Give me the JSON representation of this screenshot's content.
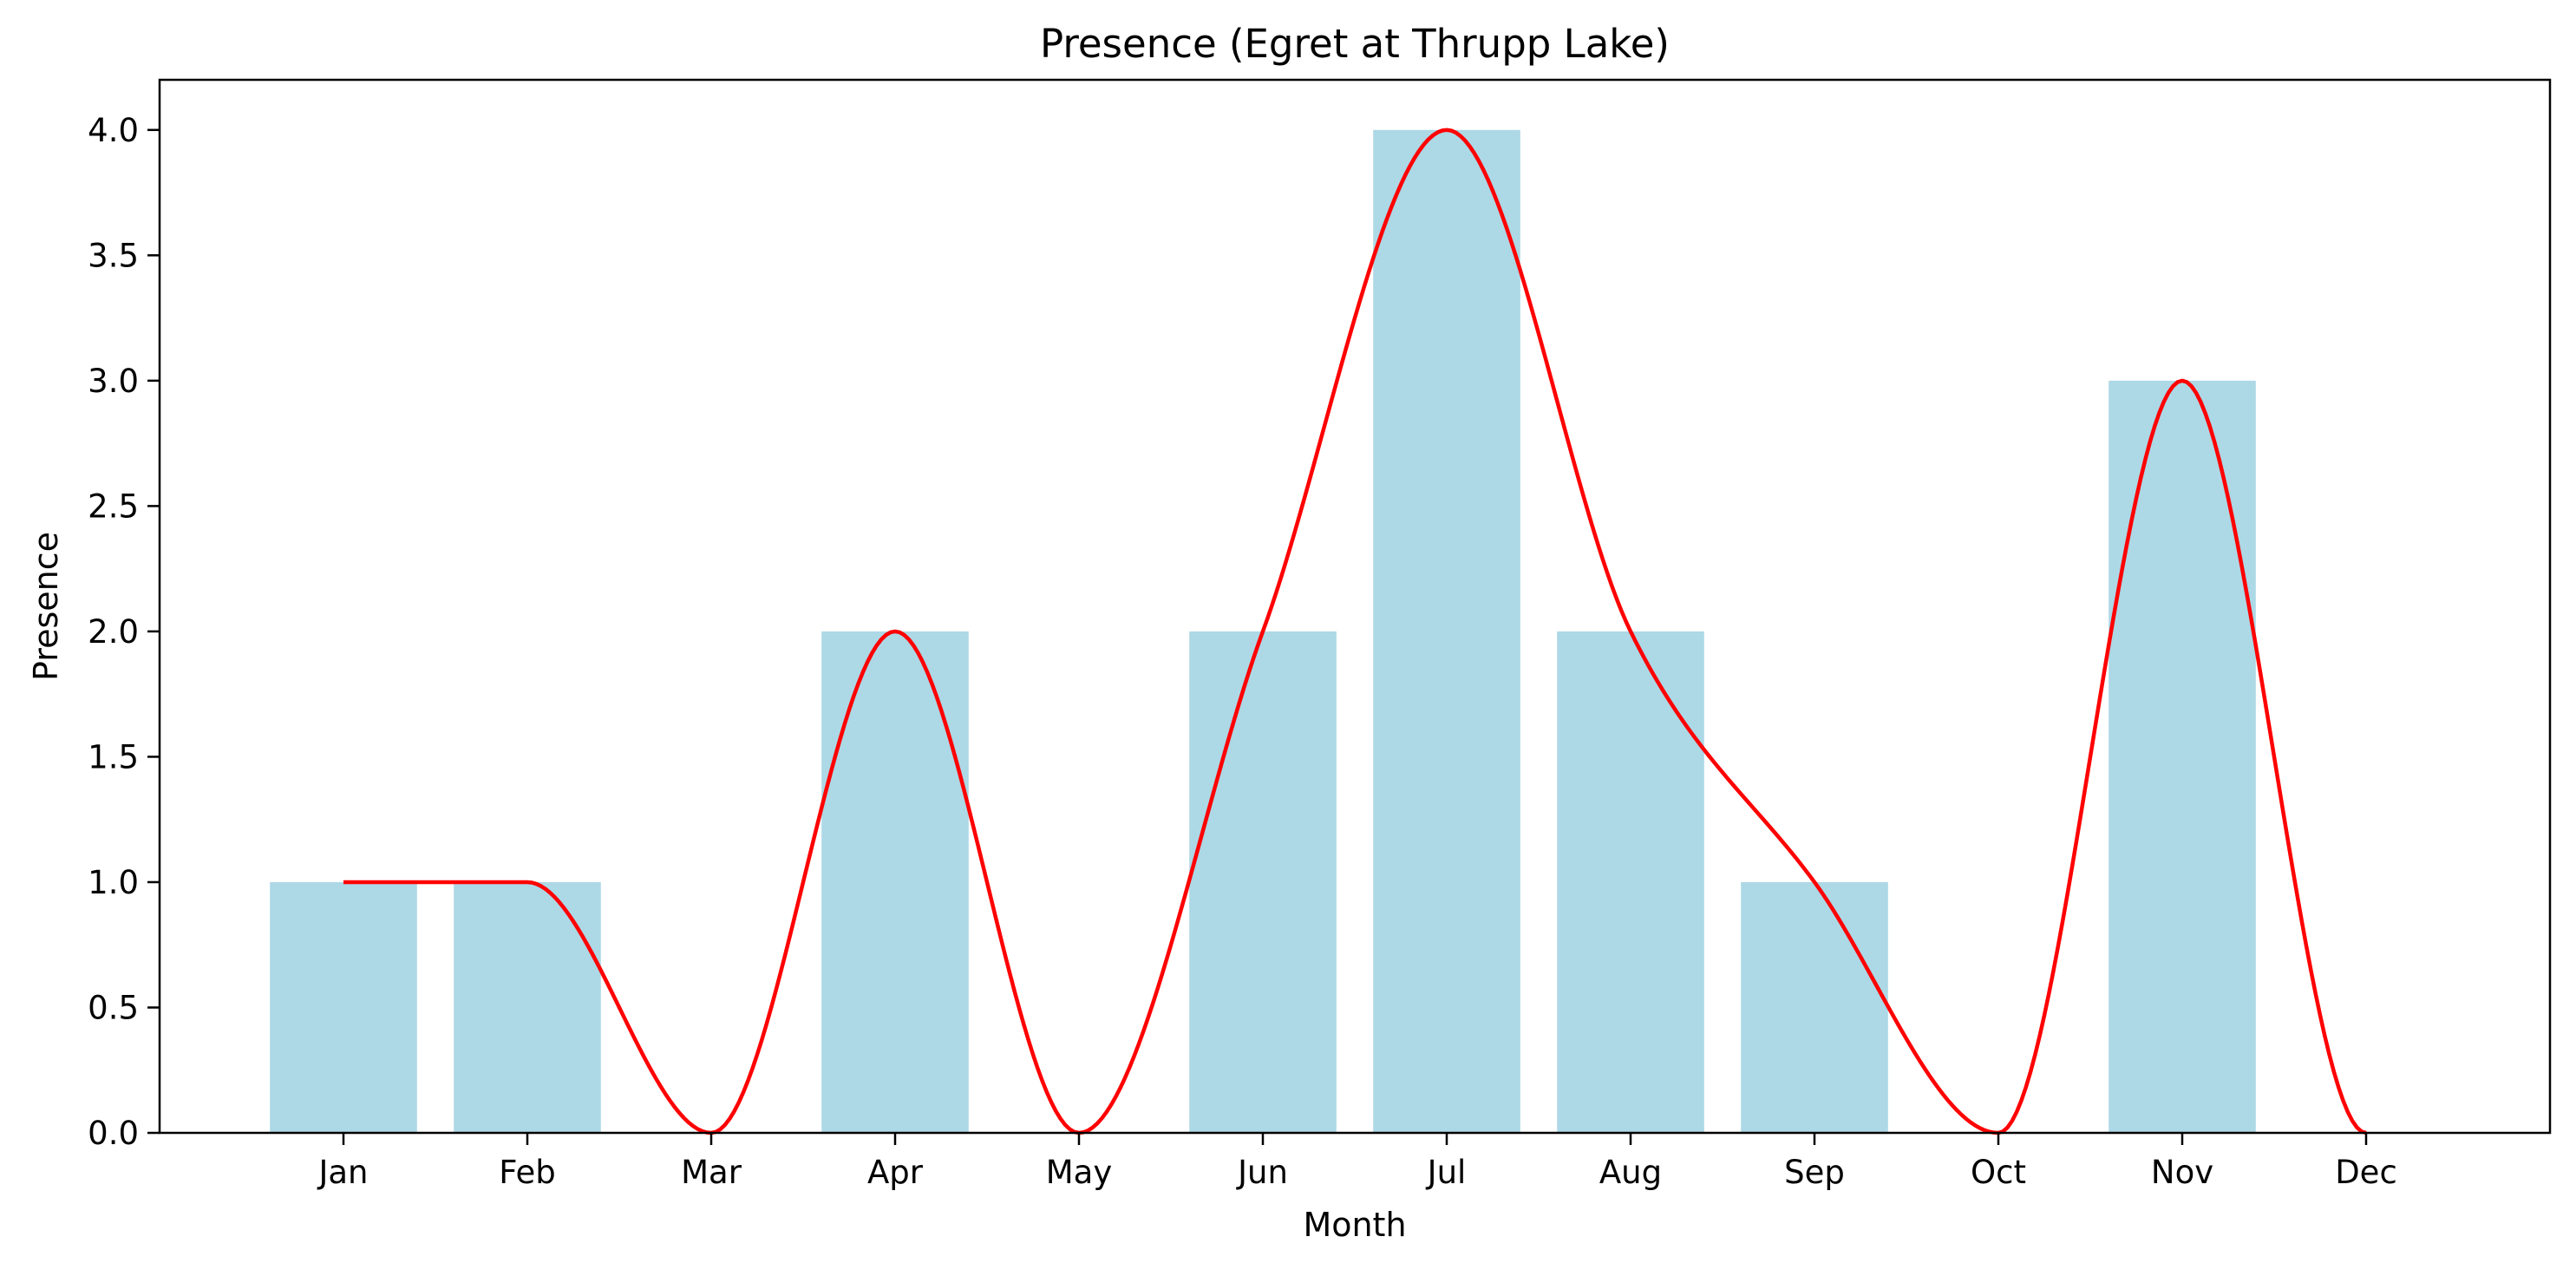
{
  "chart_data": {
    "type": "bar",
    "title": "Presence (Egret at Thrupp Lake)",
    "xlabel": "Month",
    "ylabel": "Presence",
    "categories": [
      "Jan",
      "Feb",
      "Mar",
      "Apr",
      "May",
      "Jun",
      "Jul",
      "Aug",
      "Sep",
      "Oct",
      "Nov",
      "Dec"
    ],
    "series": [
      {
        "values": [
          1,
          1,
          0,
          2,
          0,
          2,
          4,
          2,
          1,
          0,
          3,
          0
        ]
      }
    ],
    "ylim": [
      0,
      4.2
    ],
    "yticks": [
      "0.0",
      "0.5",
      "1.0",
      "1.5",
      "2.0",
      "2.5",
      "3.0",
      "3.5",
      "4.0"
    ],
    "overlay": {
      "type": "line",
      "style": "smoothed",
      "values": [
        1,
        1,
        0,
        2,
        0,
        2,
        4,
        2,
        1,
        0,
        3,
        0
      ]
    },
    "grid": false,
    "legend": "none",
    "colors": {
      "bar": "#add8e6",
      "line": "#ff0000",
      "axes": "#000000"
    }
  }
}
